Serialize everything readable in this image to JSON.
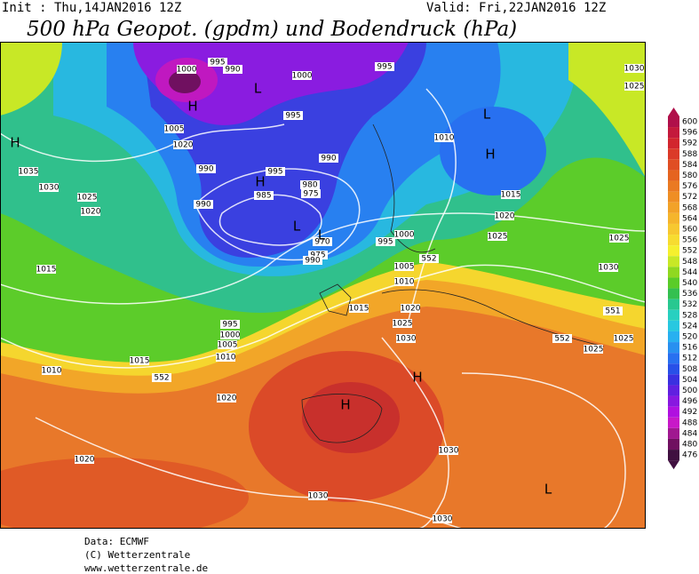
{
  "header": {
    "init": "Init : Thu,14JAN2016  12Z",
    "valid": "Valid: Fri,22JAN2016  12Z",
    "title": "500 hPa Geopot. (gpdm) und Bodendruck (hPa)"
  },
  "map": {
    "isobar_labels": [
      "1000",
      "995",
      "990",
      "1000",
      "995",
      "1030",
      "1025",
      "995",
      "1005",
      "1020",
      "1010",
      "1035",
      "990",
      "990",
      "995",
      "1030",
      "985",
      "980",
      "975",
      "1025",
      "990",
      "1020",
      "1015",
      "1020",
      "970",
      "995",
      "1000",
      "1025",
      "1025",
      "975",
      "990",
      "1005",
      "552",
      "1030",
      "1015",
      "1010",
      "1015",
      "1020",
      "551",
      "995",
      "1025",
      "1000",
      "552",
      "1030",
      "1025",
      "1005",
      "1025",
      "1010",
      "1015",
      "1010",
      "552",
      "1020",
      "1030",
      "1020",
      "1030",
      "1030"
    ],
    "pressure_centers": [
      "H",
      "H",
      "L",
      "L",
      "H",
      "H",
      "L",
      "L",
      "H",
      "H",
      "L"
    ]
  },
  "colorbar": {
    "levels": [
      600,
      596,
      592,
      588,
      584,
      580,
      576,
      572,
      568,
      564,
      560,
      556,
      552,
      548,
      544,
      540,
      536,
      532,
      528,
      524,
      520,
      516,
      512,
      508,
      504,
      500,
      496,
      492,
      488,
      484,
      480,
      476
    ],
    "colors": [
      "#b0104a",
      "#c41a3c",
      "#d2262e",
      "#db3a28",
      "#e04e24",
      "#e56420",
      "#ea7a22",
      "#ef8e24",
      "#f2a228",
      "#f5b52c",
      "#f7c830",
      "#f7dc30",
      "#f5f02e",
      "#c8e826",
      "#90d820",
      "#5acc28",
      "#34c050",
      "#28c890",
      "#28d0c0",
      "#28c8e0",
      "#28b0f0",
      "#2890f0",
      "#2870f0",
      "#2850e8",
      "#3a30e0",
      "#6020e0",
      "#8818e0",
      "#b010e0",
      "#c818c8",
      "#a01890",
      "#701060",
      "#401040"
    ]
  },
  "footer": {
    "source": "Data: ECMWF",
    "copyright": "(C) Wetterzentrale",
    "url": "www.wetterzentrale.de"
  }
}
